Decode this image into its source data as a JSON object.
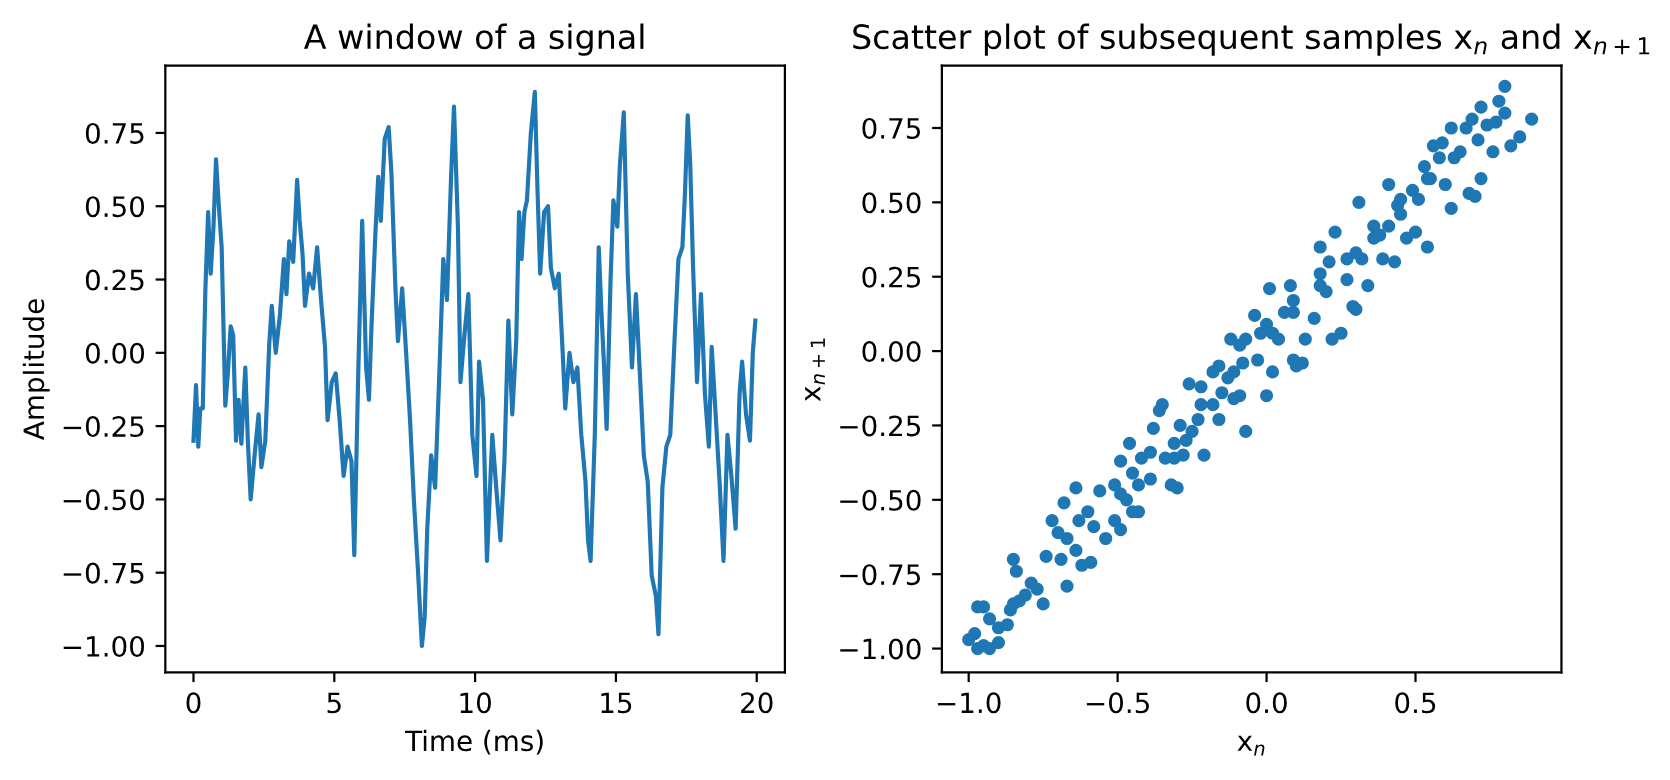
{
  "chart_data": [
    {
      "type": "line",
      "title": "A window of a signal",
      "xlabel": "Time (ms)",
      "ylabel": "Amplitude",
      "xlim": [
        -1,
        21
      ],
      "ylim": [
        -1.09,
        0.98
      ],
      "xticks": [
        0,
        5,
        10,
        15,
        20
      ],
      "yticks": [
        {
          "value": -1.0,
          "label": "−1.00"
        },
        {
          "value": -0.75,
          "label": "−0.75"
        },
        {
          "value": -0.5,
          "label": "−0.50"
        },
        {
          "value": -0.25,
          "label": "−0.25"
        },
        {
          "value": 0,
          "label": "0.00"
        },
        {
          "value": 0.25,
          "label": "0.25"
        },
        {
          "value": 0.5,
          "label": "0.50"
        },
        {
          "value": 0.75,
          "label": "0.75"
        }
      ],
      "grid": false,
      "legend": false,
      "series": [
        {
          "color": "#1f77b4",
          "x": [
            0,
            0.09,
            0.17,
            0.24,
            0.33,
            0.42,
            0.52,
            0.61,
            0.71,
            0.8,
            0.9,
            1.0,
            1.13,
            1.22,
            1.32,
            1.41,
            1.51,
            1.6,
            1.7,
            1.84,
            1.93,
            2.03,
            2.17,
            2.31,
            2.41,
            2.55,
            2.69,
            2.78,
            2.92,
            3.07,
            3.21,
            3.3,
            3.4,
            3.54,
            3.68,
            3.77,
            3.87,
            3.96,
            4.1,
            4.25,
            4.39,
            4.53,
            4.67,
            4.76,
            4.91,
            5.05,
            5.19,
            5.33,
            5.47,
            5.61,
            5.71,
            5.85,
            5.99,
            6.13,
            6.23,
            6.32,
            6.46,
            6.56,
            6.65,
            6.79,
            6.93,
            7.03,
            7.17,
            7.26,
            7.41,
            7.55,
            7.69,
            7.83,
            7.97,
            8.11,
            8.21,
            8.3,
            8.44,
            8.58,
            8.73,
            8.87,
            9.0,
            9.15,
            9.25,
            9.39,
            9.48,
            9.62,
            9.76,
            9.9,
            10.05,
            10.14,
            10.28,
            10.42,
            10.61,
            10.75,
            10.9,
            11.04,
            11.18,
            11.32,
            11.46,
            11.56,
            11.65,
            11.75,
            11.84,
            11.98,
            12.12,
            12.22,
            12.31,
            12.45,
            12.59,
            12.69,
            12.83,
            12.97,
            13.11,
            13.2,
            13.35,
            13.49,
            13.63,
            13.77,
            13.92,
            14.01,
            14.1,
            14.25,
            14.39,
            14.48,
            14.58,
            14.67,
            14.81,
            14.91,
            15.05,
            15.14,
            15.28,
            15.42,
            15.57,
            15.71,
            15.85,
            15.99,
            16.13,
            16.27,
            16.42,
            16.51,
            16.65,
            16.79,
            16.93,
            17.08,
            17.22,
            17.36,
            17.45,
            17.55,
            17.64,
            17.74,
            17.88,
            18.02,
            18.16,
            18.3,
            18.4,
            18.54,
            18.68,
            18.82,
            18.96,
            19.1,
            19.25,
            19.39,
            19.48,
            19.62,
            19.76,
            19.86,
            19.95
          ],
          "values": [
            -0.3,
            -0.11,
            -0.32,
            -0.19,
            -0.19,
            0.21,
            0.48,
            0.27,
            0.43,
            0.66,
            0.5,
            0.36,
            -0.18,
            -0.07,
            0.09,
            0.06,
            -0.3,
            -0.16,
            -0.31,
            -0.05,
            -0.3,
            -0.5,
            -0.35,
            -0.21,
            -0.39,
            -0.3,
            0.03,
            0.16,
            0.0,
            0.13,
            0.32,
            0.2,
            0.38,
            0.31,
            0.59,
            0.45,
            0.34,
            0.16,
            0.27,
            0.22,
            0.36,
            0.18,
            0.02,
            -0.23,
            -0.1,
            -0.07,
            -0.23,
            -0.42,
            -0.32,
            -0.37,
            -0.69,
            -0.07,
            0.45,
            -0.05,
            -0.16,
            0.09,
            0.41,
            0.6,
            0.45,
            0.73,
            0.77,
            0.61,
            0.22,
            0.04,
            0.22,
            0.0,
            -0.23,
            -0.51,
            -0.74,
            -1.0,
            -0.9,
            -0.6,
            -0.35,
            -0.46,
            -0.07,
            0.32,
            0.18,
            0.61,
            0.84,
            0.43,
            -0.1,
            0.06,
            0.2,
            -0.28,
            -0.42,
            -0.03,
            -0.16,
            -0.71,
            -0.28,
            -0.46,
            -0.64,
            -0.37,
            0.11,
            -0.21,
            0.04,
            0.48,
            0.32,
            0.48,
            0.52,
            0.75,
            0.89,
            0.54,
            0.27,
            0.48,
            0.5,
            0.29,
            0.22,
            0.27,
            0.0,
            -0.19,
            0.0,
            -0.1,
            -0.05,
            -0.28,
            -0.44,
            -0.64,
            -0.71,
            -0.28,
            0.36,
            0.15,
            -0.05,
            -0.26,
            0.25,
            0.52,
            0.43,
            0.64,
            0.82,
            0.27,
            -0.05,
            0.2,
            -0.07,
            -0.35,
            -0.44,
            -0.76,
            -0.83,
            -0.96,
            -0.46,
            -0.32,
            -0.28,
            0.04,
            0.32,
            0.36,
            0.54,
            0.81,
            0.64,
            0.29,
            -0.1,
            0.2,
            -0.14,
            -0.32,
            0.02,
            -0.21,
            -0.44,
            -0.71,
            -0.28,
            -0.42,
            -0.6,
            -0.14,
            -0.03,
            -0.21,
            -0.3,
            0.0,
            0.11
          ]
        }
      ]
    },
    {
      "type": "scatter",
      "title": "Scatter plot of subsequent samples x$_{n}$ and x$_{n+1}$",
      "xlabel": "x$_{n}$",
      "ylabel": "x$_{n+1}$",
      "xlim": [
        -1.09,
        0.99
      ],
      "ylim": [
        -1.08,
        0.96
      ],
      "xticks": [
        {
          "value": -1.0,
          "label": "−1.0"
        },
        {
          "value": -0.5,
          "label": "−0.5"
        },
        {
          "value": 0,
          "label": "0.0"
        },
        0.5
      ],
      "yticks": [
        {
          "value": -1.0,
          "label": "−1.00"
        },
        {
          "value": -0.75,
          "label": "−0.75"
        },
        {
          "value": -0.5,
          "label": "−0.50"
        },
        {
          "value": -0.25,
          "label": "−0.25"
        },
        {
          "value": 0,
          "label": "0.00"
        },
        {
          "value": 0.25,
          "label": "0.25"
        },
        {
          "value": 0.5,
          "label": "0.50"
        },
        {
          "value": 0.75,
          "label": "0.75"
        }
      ],
      "grid": false,
      "legend": false,
      "marker": "circle",
      "series": [
        {
          "color": "#1f77b4",
          "x": [
            -1.0,
            -0.98,
            -0.97,
            -0.95,
            -0.93,
            -0.9,
            -0.93,
            -0.97,
            -0.95,
            -0.9,
            -0.87,
            -0.86,
            -0.85,
            -0.83,
            -0.81,
            -0.77,
            -0.75,
            -0.85,
            -0.84,
            -0.79,
            -0.74,
            -0.72,
            -0.7,
            -0.68,
            -0.69,
            -0.67,
            -0.64,
            -0.67,
            -0.64,
            -0.62,
            -0.59,
            -0.63,
            -0.6,
            -0.58,
            -0.56,
            -0.54,
            -0.51,
            -0.49,
            -0.47,
            -0.45,
            -0.43,
            -0.51,
            -0.49,
            -0.46,
            -0.45,
            -0.42,
            -0.39,
            -0.38,
            -0.36,
            -0.35,
            -0.34,
            -0.32,
            -0.3,
            -0.31,
            -0.29,
            -0.28,
            -0.26,
            -0.25,
            -0.22,
            -0.21,
            -0.18,
            -0.16,
            -0.15,
            -0.13,
            -0.12,
            -0.11,
            -0.09,
            -0.07,
            -0.08,
            -0.07,
            -0.04,
            -0.02,
            0.0,
            0.01,
            0.02,
            0.04,
            0.06,
            0.08,
            0.09,
            0.1,
            0.12,
            0.13,
            0.16,
            0.18,
            0.18,
            0.2,
            0.22,
            0.23,
            0.25,
            0.27,
            0.29,
            0.3,
            0.3,
            0.31,
            0.32,
            0.34,
            0.36,
            0.38,
            0.39,
            0.41,
            0.41,
            0.43,
            0.44,
            0.45,
            0.47,
            0.49,
            0.5,
            0.51,
            0.54,
            0.53,
            0.55,
            0.56,
            0.58,
            0.59,
            0.6,
            0.62,
            0.62,
            0.65,
            0.67,
            0.68,
            0.7,
            0.72,
            0.69,
            0.72,
            0.74,
            0.76,
            0.77,
            0.78,
            0.8,
            0.8,
            0.82,
            0.85,
            0.89,
            0.21,
            0.09,
            0.02,
            -0.03,
            -0.11,
            -0.18,
            -0.23,
            -0.27,
            -0.31,
            -0.39,
            -0.43,
            -0.49,
            -0.22,
            -0.16,
            -0.09,
            0.0,
            0.09,
            0.18,
            0.27,
            0.36,
            0.45,
            0.54,
            0.63,
            0.71
          ],
          "values": [
            -0.97,
            -0.95,
            -1.0,
            -0.99,
            -1.0,
            -0.98,
            -0.9,
            -0.86,
            -0.86,
            -0.93,
            -0.92,
            -0.87,
            -0.85,
            -0.84,
            -0.82,
            -0.8,
            -0.85,
            -0.7,
            -0.74,
            -0.78,
            -0.69,
            -0.57,
            -0.61,
            -0.51,
            -0.7,
            -0.79,
            -0.46,
            -0.63,
            -0.67,
            -0.72,
            -0.71,
            -0.57,
            -0.54,
            -0.59,
            -0.47,
            -0.63,
            -0.57,
            -0.6,
            -0.5,
            -0.54,
            -0.54,
            -0.45,
            -0.37,
            -0.31,
            -0.41,
            -0.36,
            -0.43,
            -0.26,
            -0.2,
            -0.18,
            -0.36,
            -0.45,
            -0.46,
            -0.31,
            -0.25,
            -0.35,
            -0.11,
            -0.27,
            -0.18,
            -0.35,
            -0.07,
            -0.23,
            -0.14,
            -0.09,
            0.04,
            -0.07,
            -0.15,
            -0.27,
            -0.04,
            0.04,
            0.12,
            0.06,
            -0.15,
            0.21,
            -0.07,
            0.04,
            0.13,
            0.22,
            -0.03,
            -0.05,
            -0.04,
            0.04,
            0.11,
            0.35,
            0.26,
            0.2,
            0.04,
            0.4,
            0.06,
            0.24,
            0.15,
            0.14,
            0.33,
            0.5,
            0.31,
            0.22,
            0.38,
            0.39,
            0.31,
            0.56,
            0.42,
            0.3,
            0.49,
            0.46,
            0.38,
            0.54,
            0.4,
            0.51,
            0.35,
            0.62,
            0.58,
            0.69,
            0.65,
            0.7,
            0.56,
            0.75,
            0.48,
            0.67,
            0.75,
            0.53,
            0.52,
            0.58,
            0.78,
            0.82,
            0.76,
            0.67,
            0.77,
            0.84,
            0.89,
            0.8,
            0.69,
            0.72,
            0.78,
            0.3,
            0.13,
            0.06,
            -0.03,
            -0.16,
            -0.18,
            -0.23,
            -0.3,
            -0.36,
            -0.34,
            -0.45,
            -0.48,
            -0.12,
            -0.05,
            0.02,
            0.09,
            0.17,
            0.22,
            0.31,
            0.42,
            0.51,
            0.58,
            0.65,
            0.71
          ]
        }
      ]
    }
  ]
}
